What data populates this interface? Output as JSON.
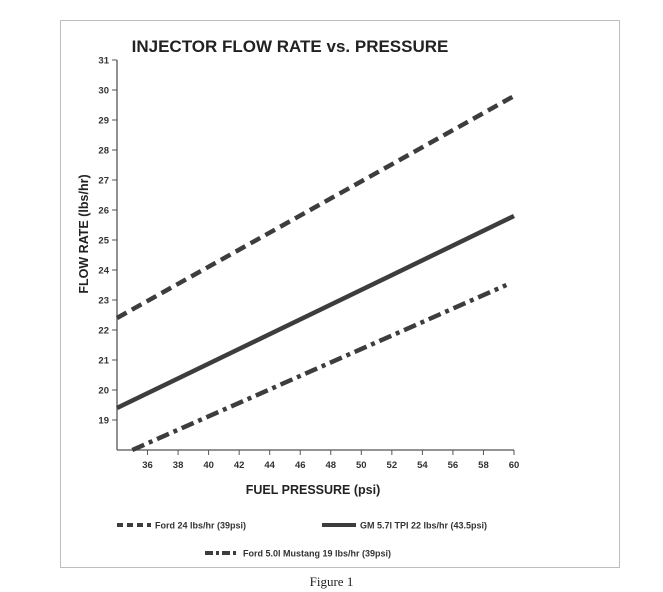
{
  "chart_data": {
    "type": "line",
    "title": "INJECTOR FLOW RATE vs. PRESSURE",
    "xlabel": "FUEL PRESSURE (psi)",
    "ylabel": "FLOW RATE (lbs/hr)",
    "xlim": [
      34,
      60
    ],
    "ylim": [
      18,
      31
    ],
    "x_ticks": [
      36,
      38,
      40,
      42,
      44,
      46,
      48,
      50,
      52,
      54,
      56,
      58,
      60
    ],
    "y_ticks": [
      19,
      20,
      21,
      22,
      23,
      24,
      25,
      26,
      27,
      28,
      29,
      30,
      31
    ],
    "grid": false,
    "legend_position": "bottom",
    "series": [
      {
        "name": "Ford 24 lbs/hr (39psi)",
        "style": "dashed",
        "color": "#3d3d3d",
        "x": [
          34,
          60
        ],
        "y": [
          22.4,
          29.8
        ]
      },
      {
        "name": "GM 5.7l TPI 22 lbs/hr (43.5psi)",
        "style": "solid",
        "color": "#3d3d3d",
        "x": [
          34,
          60
        ],
        "y": [
          19.4,
          25.8
        ]
      },
      {
        "name": "Ford 5.0l Mustang 19 lbs/hr (39psi)",
        "style": "dash-dot",
        "color": "#3d3d3d",
        "x": [
          35,
          59.5
        ],
        "y": [
          18.0,
          23.5
        ]
      }
    ]
  },
  "caption": "Figure 1"
}
